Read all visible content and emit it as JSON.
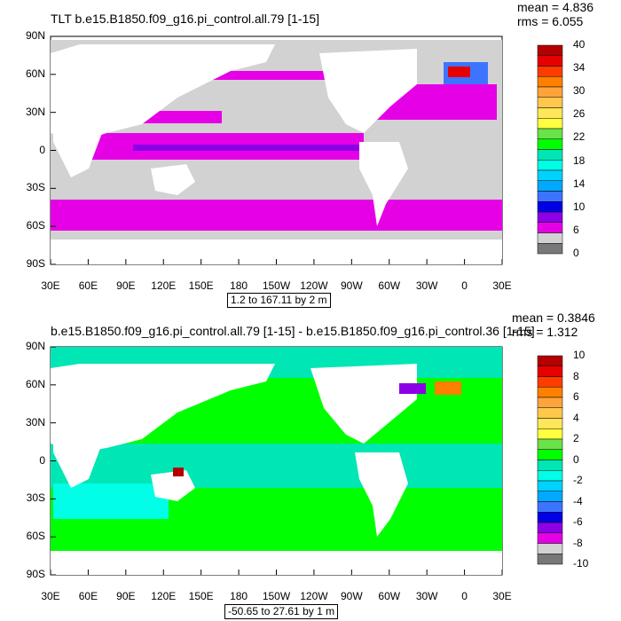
{
  "panels": [
    {
      "title": "TLT b.e15.B1850.f09_g16.pi_control.all.79 [1-15]",
      "mean": "mean = 4.836",
      "rms": "rms = 6.055",
      "info": "1.2 to 167.11 by 2 m",
      "lat_ticks": [
        "90N",
        "60N",
        "30N",
        "0",
        "30S",
        "60S",
        "90S"
      ],
      "lon_ticks": [
        "30E",
        "60E",
        "90E",
        "120E",
        "150E",
        "180",
        "150W",
        "120W",
        "90W",
        "60W",
        "30W",
        "0",
        "30E"
      ],
      "colorbar_labels": [
        "40",
        "34",
        "30",
        "26",
        "22",
        "18",
        "14",
        "10",
        "6",
        "0"
      ],
      "colorbar_colors": [
        "#b40000",
        "#e60000",
        "#ff3c00",
        "#ff7f00",
        "#ffa43a",
        "#ffc84d",
        "#ffe65a",
        "#ffff3f",
        "#6be14a",
        "#00ff00",
        "#00e6b4",
        "#00ffe6",
        "#00d2ff",
        "#00a8ff",
        "#3d74ff",
        "#0000e6",
        "#8c00e6",
        "#e600e6",
        "#d2d2d2",
        "#787878"
      ]
    },
    {
      "title": "b.e15.B1850.f09_g16.pi_control.all.79 [1-15] - b.e15.B1850.f09_g16.pi_control.36 [1-15]",
      "mean": "mean = 0.3846",
      "rms": "rms = 1.312",
      "info": "-50.65 to 27.61 by 1 m",
      "lat_ticks": [
        "90N",
        "60N",
        "30N",
        "0",
        "30S",
        "60S",
        "90S"
      ],
      "lon_ticks": [
        "30E",
        "60E",
        "90E",
        "120E",
        "150E",
        "180",
        "150W",
        "120W",
        "90W",
        "60W",
        "30W",
        "0",
        "30E"
      ],
      "colorbar_labels": [
        "10",
        "8",
        "6",
        "4",
        "2",
        "0",
        "-2",
        "-4",
        "-6",
        "-8",
        "-10"
      ],
      "colorbar_colors": [
        "#b40000",
        "#e60000",
        "#ff3c00",
        "#ff7f00",
        "#ffa43a",
        "#ffc84d",
        "#ffe65a",
        "#ffff3f",
        "#6be14a",
        "#00ff00",
        "#00e6b4",
        "#00ffe6",
        "#00d2ff",
        "#00a8ff",
        "#3d74ff",
        "#0000e6",
        "#8c00e6",
        "#e600e6",
        "#d2d2d2",
        "#787878"
      ]
    }
  ]
}
